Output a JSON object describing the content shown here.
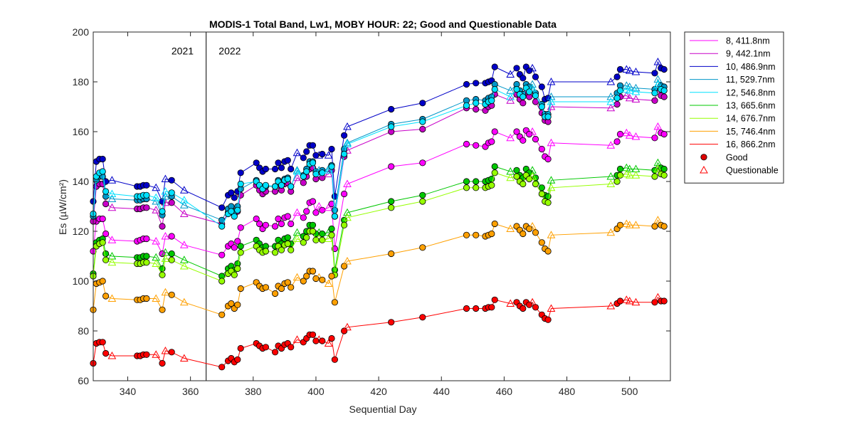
{
  "chart_data": {
    "type": "line",
    "title": "MODIS-1 Total Band,  Lw1, MOBY HOUR: 22;  Good and Questionable Data",
    "xlabel": "Sequential Day",
    "ylabel": "Es (µW/cm²)",
    "xlim": [
      329,
      513
    ],
    "ylim": [
      60,
      200
    ],
    "xticks": [
      340,
      360,
      380,
      400,
      420,
      440,
      460,
      480,
      500
    ],
    "yticks": [
      60,
      80,
      100,
      120,
      140,
      160,
      180,
      200
    ],
    "grid": false,
    "legend_position": "outside-right",
    "annotations": [
      {
        "text": "2021",
        "x": 361,
        "y": 191
      },
      {
        "text": "2022",
        "x": 369,
        "y": 191
      }
    ],
    "divider_x": 365,
    "x": [
      329,
      330,
      331,
      332,
      333,
      335,
      343,
      344,
      345,
      346,
      349,
      351,
      352,
      354,
      358,
      370,
      372,
      373,
      374,
      375,
      376,
      381,
      382,
      383,
      384,
      387,
      388,
      389,
      390,
      391,
      392,
      394,
      396,
      397,
      398,
      399,
      400,
      401,
      402,
      404,
      405,
      406,
      409,
      410,
      424,
      434,
      448,
      451,
      454,
      455,
      456,
      457,
      462,
      464,
      465,
      466,
      467,
      468,
      469,
      470,
      472,
      473,
      474,
      475,
      494,
      496,
      497,
      499,
      500,
      502,
      508,
      509,
      510,
      511
    ],
    "quality": [
      "G",
      "G",
      "G",
      "G",
      "G",
      "Q",
      "G",
      "G",
      "G",
      "G",
      "Q",
      "G",
      "Q",
      "G",
      "Q",
      "G",
      "G",
      "G",
      "G",
      "G",
      "G",
      "G",
      "G",
      "G",
      "G",
      "G",
      "G",
      "G",
      "G",
      "G",
      "G",
      "Q",
      "G",
      "G",
      "G",
      "G",
      "G",
      "Q",
      "G",
      "Q",
      "G",
      "G",
      "G",
      "Q",
      "G",
      "G",
      "G",
      "G",
      "G",
      "G",
      "G",
      "G",
      "Q",
      "G",
      "G",
      "G",
      "G",
      "G",
      "Q",
      "G",
      "G",
      "G",
      "G",
      "Q",
      "Q",
      "G",
      "G",
      "Q",
      "Q",
      "Q",
      "G",
      "Q",
      "G",
      "G"
    ],
    "markers": {
      "good": "Good",
      "questionable": "Questionable"
    },
    "series": [
      {
        "name": "8, 411.8nm",
        "color": "#ff00ff",
        "values": [
          112,
          124,
          125,
          125,
          119,
          116.5,
          116,
          116.5,
          117,
          117,
          116,
          111,
          118,
          118,
          114.5,
          110.5,
          114,
          115,
          113.5,
          116,
          121.5,
          125,
          123,
          121,
          122.5,
          122,
          125,
          123,
          125.5,
          126,
          123,
          127.5,
          125.5,
          128,
          131.5,
          132,
          127.5,
          130,
          128.5,
          129.5,
          131,
          113,
          135,
          139,
          146,
          147.5,
          155,
          154.5,
          154,
          155.5,
          156,
          160,
          157.5,
          160,
          158,
          156.5,
          160.5,
          159,
          160,
          157,
          153,
          150,
          149,
          155.5,
          154.5,
          156,
          159,
          159.5,
          158.5,
          158,
          157.5,
          162,
          159.5,
          159
        ]
      },
      {
        "name": "9, 442.1nm",
        "color": "#c800c8",
        "values": [
          124,
          138,
          139,
          139,
          131,
          129.5,
          129,
          129,
          129.5,
          129.5,
          128.5,
          122,
          131.5,
          131.5,
          127,
          123,
          127.5,
          128.5,
          126.5,
          128,
          134.5,
          138.5,
          136.5,
          135,
          136,
          136,
          138.5,
          136.5,
          139,
          139.5,
          136,
          141.5,
          139.5,
          142,
          145,
          145.5,
          141,
          143,
          141.5,
          143,
          144.5,
          126,
          150,
          152.5,
          160,
          161,
          169.5,
          169,
          168.5,
          170,
          170.5,
          175,
          172.5,
          175,
          173,
          171.5,
          175.5,
          174,
          175,
          172,
          167.5,
          164.5,
          164,
          170,
          169.5,
          171,
          174,
          174.5,
          173.5,
          173,
          172.5,
          177,
          174.5,
          174
        ]
      },
      {
        "name": "10, 486.9nm",
        "color": "#0000c8",
        "values": [
          132,
          148,
          149,
          149,
          140,
          140.5,
          138,
          138,
          138.5,
          138.5,
          137.5,
          132,
          141,
          140.5,
          136.5,
          129.5,
          134.5,
          135.5,
          133.5,
          136,
          143.5,
          147.5,
          145.5,
          144,
          145,
          145,
          147.5,
          145.5,
          148,
          148.5,
          145,
          151.5,
          149.5,
          152,
          154.5,
          154.5,
          150.5,
          150.5,
          151,
          150.5,
          153,
          134,
          158.5,
          162,
          169,
          171.5,
          179,
          179.5,
          179.5,
          180,
          180.5,
          186,
          183,
          185.5,
          183,
          181.5,
          186,
          184.5,
          185.5,
          182,
          178,
          173,
          173.5,
          180,
          180,
          182,
          185,
          185,
          184.5,
          184,
          183.5,
          188,
          185.5,
          185
        ]
      },
      {
        "name": "11, 529.7nm",
        "color": "#0096c8",
        "values": [
          126,
          140.5,
          142,
          142,
          134,
          133,
          132.5,
          132.5,
          133,
          133,
          132,
          126.5,
          134,
          134,
          130.5,
          124.5,
          129,
          130,
          128,
          130,
          137,
          140.5,
          138.5,
          137,
          138,
          138,
          140.5,
          138.5,
          141,
          141.5,
          138,
          144.5,
          142.5,
          145,
          148,
          148,
          144,
          144.5,
          144.5,
          145,
          146.5,
          128.5,
          153,
          155.5,
          163,
          165,
          172.5,
          173,
          172.5,
          173.5,
          174,
          179,
          176.5,
          179,
          176.5,
          175,
          179,
          178,
          179,
          175.5,
          171,
          167,
          167,
          174,
          174,
          175.5,
          178.5,
          178.5,
          178,
          177.5,
          177,
          181,
          178.5,
          178
        ]
      },
      {
        "name": "12, 546.8nm",
        "color": "#00e1ff",
        "values": [
          127,
          142,
          143.5,
          144,
          136,
          135,
          134,
          134,
          134.5,
          134.5,
          133.5,
          128,
          136,
          135.5,
          132.5,
          122,
          127,
          128,
          126,
          128.5,
          139,
          140,
          138.5,
          137,
          138.5,
          138,
          140,
          138.5,
          140.5,
          141,
          138,
          144,
          142,
          144,
          147,
          147.5,
          143,
          143.5,
          143.5,
          144.5,
          146,
          126,
          151,
          155,
          162,
          164,
          170.5,
          171.5,
          171,
          172,
          172.5,
          177,
          174,
          177,
          175,
          174,
          177.5,
          176,
          177.5,
          174.5,
          170,
          166,
          166,
          172,
          172,
          173.5,
          176.5,
          177,
          176.5,
          176,
          175.5,
          179,
          177,
          176.5
        ]
      },
      {
        "name": "13, 665.6nm",
        "color": "#00c800",
        "values": [
          103,
          115.5,
          116.5,
          117,
          111,
          110,
          109.5,
          109.5,
          110,
          110,
          109.5,
          105,
          111.5,
          111,
          108.5,
          102,
          105,
          106,
          104.5,
          107,
          114,
          116.5,
          115,
          113.5,
          114,
          114,
          116.5,
          115,
          117,
          117.5,
          115,
          119.5,
          118,
          120,
          122.5,
          122.5,
          119,
          119.5,
          119,
          119.5,
          121,
          104.5,
          124.5,
          127.5,
          132,
          134.5,
          140,
          140,
          140,
          140.5,
          141,
          146,
          144,
          144.5,
          142.5,
          141.5,
          145,
          143.5,
          144.5,
          141.5,
          137.5,
          134.5,
          134,
          140.5,
          142,
          142.5,
          145,
          145.5,
          145,
          145,
          144.5,
          147.5,
          145.5,
          145
        ]
      },
      {
        "name": "14, 676.7nm",
        "color": "#96ff00",
        "values": [
          102,
          114,
          115,
          115.5,
          108.5,
          107.5,
          107,
          107,
          107.5,
          107.5,
          107,
          102.5,
          109,
          108.5,
          106,
          100,
          103,
          104,
          102.5,
          105,
          111.5,
          114,
          112.5,
          111.5,
          112,
          111.5,
          114,
          112.5,
          114.5,
          115,
          112.5,
          117,
          115.5,
          117.5,
          120,
          120,
          116.5,
          117,
          116.5,
          117,
          118.5,
          102.5,
          122.5,
          125.5,
          129.5,
          132,
          137.5,
          137.5,
          137.5,
          138,
          138.5,
          143.5,
          141.5,
          142,
          140,
          139,
          142.5,
          141,
          142,
          139,
          135,
          132,
          131.5,
          137.5,
          139,
          140,
          142.5,
          143,
          142.5,
          142.5,
          142,
          145,
          143,
          142.5
        ]
      },
      {
        "name": "15, 746.4nm",
        "color": "#ffa000",
        "values": [
          88.5,
          99,
          99.5,
          100,
          94,
          93,
          92.5,
          92.5,
          93,
          93,
          93,
          88.5,
          95.5,
          94.5,
          91.5,
          86.5,
          90,
          91,
          89,
          90.5,
          97,
          99.5,
          98,
          97,
          97.5,
          95,
          98,
          97,
          99,
          99.5,
          97.5,
          101.5,
          100,
          102,
          104,
          104,
          101,
          101.5,
          100.5,
          99,
          102,
          91.5,
          106,
          108,
          111,
          113.5,
          118.5,
          118.5,
          118,
          118.5,
          119,
          123,
          121,
          122,
          120.5,
          119,
          122,
          121,
          122,
          119.5,
          115.5,
          113,
          112,
          118.5,
          119.5,
          121,
          122.5,
          123,
          122.5,
          122.5,
          122,
          124.5,
          122.5,
          122
        ]
      },
      {
        "name": "16, 866.2nm",
        "color": "#ff0000",
        "values": [
          67,
          75,
          75.5,
          75.5,
          71,
          70,
          70,
          70,
          70.5,
          70.5,
          70.5,
          67,
          72,
          71.5,
          69,
          65.5,
          68,
          69,
          67.5,
          68.5,
          73,
          75,
          74,
          73,
          73.5,
          71.5,
          74,
          73,
          74.5,
          75,
          73.5,
          76.5,
          75.5,
          77,
          78.5,
          78.5,
          76,
          76.5,
          76,
          75,
          77,
          68.5,
          80,
          81.5,
          83.5,
          85.5,
          89,
          89,
          89,
          89.5,
          89.5,
          92.5,
          91,
          91.5,
          90,
          89,
          91.5,
          90.5,
          91.5,
          89.5,
          86.5,
          85,
          84.5,
          89,
          90,
          91,
          92,
          92.5,
          92,
          91.5,
          91.5,
          93.5,
          92,
          92
        ]
      }
    ]
  }
}
